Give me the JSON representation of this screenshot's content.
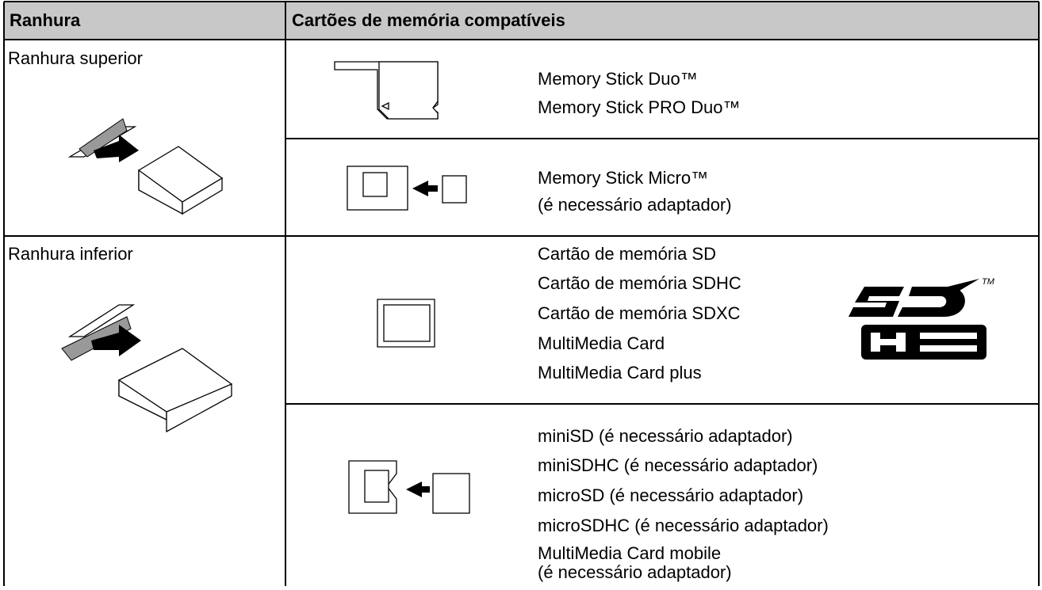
{
  "table": {
    "header": [
      "Ranhura",
      "Cartões de memória compatíveis"
    ],
    "rows": [
      {
        "slot": "Ranhura superior",
        "entries": [
          {
            "cards": [
              "Memory Stick Duo™",
              "Memory Stick PRO Duo™"
            ]
          },
          {
            "cards": [
              "Memory Stick Micro™",
              "(é necessário adaptador)"
            ]
          }
        ]
      },
      {
        "slot": "Ranhura inferior",
        "logo_mark": "TM",
        "entries": [
          {
            "cards": [
              "Cartão de memória SD",
              "Cartão de memória SDHC",
              "Cartão de memória SDXC",
              "MultiMedia Card",
              "MultiMedia Card plus"
            ]
          },
          {
            "cards": [
              "miniSD (é necessário adaptador)",
              "miniSDHC (é necessário adaptador)",
              "microSD (é necessário adaptador)",
              "microSDHC (é necessário adaptador)",
              "MultiMedia Card mobile",
              "(é necessário adaptador)"
            ]
          }
        ]
      }
    ]
  }
}
